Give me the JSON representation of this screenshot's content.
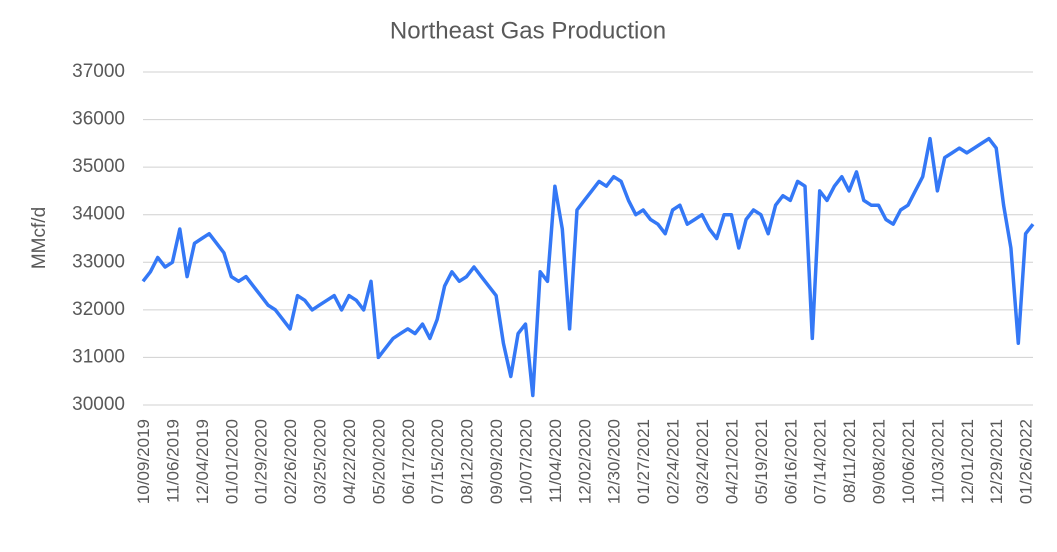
{
  "chart_data": {
    "type": "line",
    "title": "Northeast Gas Production",
    "y_label": "MMcf/d",
    "categories": [
      "10/09/2019",
      null,
      null,
      null,
      "11/06/2019",
      null,
      null,
      null,
      "12/04/2019",
      null,
      null,
      null,
      "01/01/2020",
      null,
      null,
      null,
      "01/29/2020",
      null,
      null,
      null,
      "02/26/2020",
      null,
      null,
      null,
      "03/25/2020",
      null,
      null,
      null,
      "04/22/2020",
      null,
      null,
      null,
      "05/20/2020",
      null,
      null,
      null,
      "06/17/2020",
      null,
      null,
      null,
      "07/15/2020",
      null,
      null,
      null,
      "08/12/2020",
      null,
      null,
      null,
      "09/09/2020",
      null,
      null,
      null,
      "10/07/2020",
      null,
      null,
      null,
      "11/04/2020",
      null,
      null,
      null,
      "12/02/2020",
      null,
      null,
      null,
      "12/30/2020",
      null,
      null,
      null,
      "01/27/2021",
      null,
      null,
      null,
      "02/24/2021",
      null,
      null,
      null,
      "03/24/2021",
      null,
      null,
      null,
      "04/21/2021",
      null,
      null,
      null,
      "05/19/2021",
      null,
      null,
      null,
      "06/16/2021",
      null,
      null,
      null,
      "07/14/2021",
      null,
      null,
      null,
      "08/11/2021",
      null,
      null,
      null,
      "09/08/2021",
      null,
      null,
      null,
      "10/06/2021",
      null,
      null,
      null,
      "11/03/2021",
      null,
      null,
      null,
      "12/01/2021",
      null,
      null,
      null,
      "12/29/2021",
      null,
      null,
      null,
      "01/26/2022",
      null
    ],
    "series": [
      {
        "name": "Northeast Gas Production",
        "color": "#3478f6",
        "values": [
          32600,
          32800,
          33100,
          32900,
          33000,
          33700,
          32700,
          33400,
          33500,
          33600,
          33400,
          33200,
          32700,
          32600,
          32700,
          32500,
          32300,
          32100,
          32000,
          31800,
          31600,
          32300,
          32200,
          32000,
          32100,
          32200,
          32300,
          32000,
          32300,
          32200,
          32000,
          32600,
          31000,
          31200,
          31400,
          31500,
          31600,
          31500,
          31700,
          31400,
          31800,
          32500,
          32800,
          32600,
          32700,
          32900,
          32700,
          32500,
          32300,
          31300,
          30600,
          31500,
          31700,
          30200,
          32800,
          32600,
          34600,
          33700,
          31600,
          34100,
          34300,
          34500,
          34700,
          34600,
          34800,
          34700,
          34300,
          34000,
          34100,
          33900,
          33800,
          33600,
          34100,
          34200,
          33800,
          33900,
          34000,
          33700,
          33500,
          34000,
          34000,
          33300,
          33900,
          34100,
          34000,
          33600,
          34200,
          34400,
          34300,
          34700,
          34600,
          31400,
          34500,
          34300,
          34600,
          34800,
          34500,
          34900,
          34300,
          34200,
          34200,
          33900,
          33800,
          34100,
          34200,
          34500,
          34800,
          35600,
          34500,
          35200,
          35300,
          35400,
          35300,
          35400,
          35500,
          35600,
          35400,
          34200,
          33300,
          31300,
          33600,
          33800
        ]
      }
    ],
    "ylim": [
      30000,
      37000
    ],
    "yticks": [
      30000,
      31000,
      32000,
      33000,
      34000,
      35000,
      36000,
      37000
    ],
    "grid": true
  }
}
